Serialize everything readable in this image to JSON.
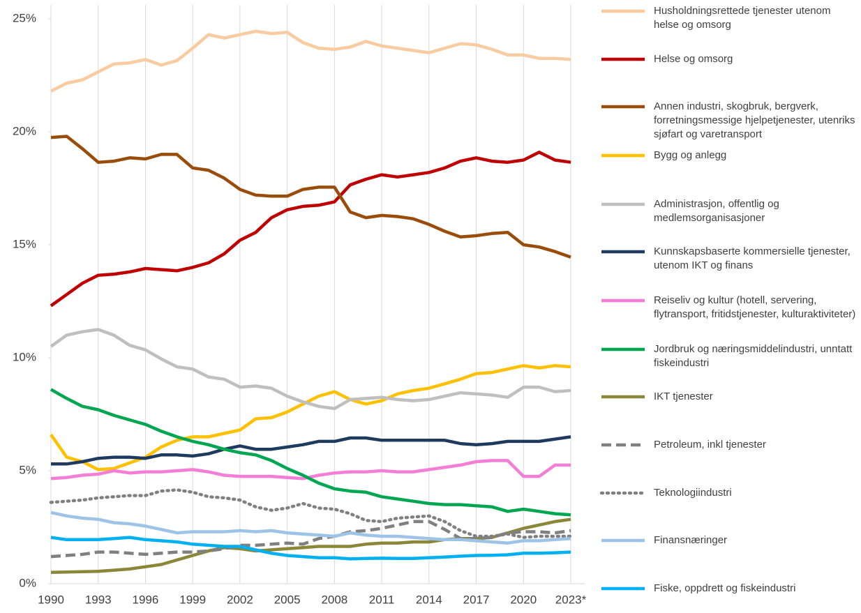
{
  "chart_data": {
    "type": "line",
    "categories": [
      "1990",
      null,
      null,
      "1993",
      null,
      null,
      "1996",
      null,
      null,
      "1999",
      null,
      null,
      "2002",
      null,
      null,
      "2005",
      null,
      null,
      "2008",
      null,
      null,
      "2011",
      null,
      null,
      "2014",
      null,
      null,
      "2017",
      null,
      null,
      "2020",
      null,
      null,
      "2023*"
    ],
    "ylim": [
      0,
      25
    ],
    "yticks": [
      {
        "value": 0,
        "label": "0%"
      },
      {
        "value": 5,
        "label": "5%"
      },
      {
        "value": 10,
        "label": "10%"
      },
      {
        "value": 15,
        "label": "15%"
      },
      {
        "value": 20,
        "label": "20%"
      },
      {
        "value": 25,
        "label": "25%"
      }
    ],
    "grid": true,
    "legend": "right",
    "series": [
      {
        "name": "Husholdningsrettede tjenester utenom helse og omsorg",
        "color": "#f8cba0",
        "dash": "solid",
        "values": [
          21.8,
          22.15,
          22.3,
          22.65,
          23.0,
          23.05,
          23.2,
          22.95,
          23.15,
          23.7,
          24.3,
          24.15,
          24.3,
          24.45,
          24.35,
          24.4,
          23.95,
          23.7,
          23.65,
          23.75,
          24.0,
          23.8,
          23.7,
          23.6,
          23.5,
          23.7,
          23.9,
          23.85,
          23.65,
          23.4,
          23.4,
          23.25,
          23.25,
          23.2
        ]
      },
      {
        "name": "Helse og omsorg",
        "color": "#c00000",
        "dash": "solid",
        "values": [
          12.3,
          12.8,
          13.3,
          13.65,
          13.7,
          13.8,
          13.95,
          13.9,
          13.85,
          14.0,
          14.2,
          14.6,
          15.2,
          15.55,
          16.2,
          16.55,
          16.7,
          16.75,
          16.9,
          17.65,
          17.9,
          18.1,
          18.0,
          18.1,
          18.2,
          18.4,
          18.7,
          18.85,
          18.7,
          18.65,
          18.75,
          19.1,
          18.75,
          18.65
        ]
      },
      {
        "name": "Annen industri, skogbruk, bergverk, forretningsmessige hjelpetjenester, utenriks sjøfart og varetransport",
        "color": "#9a4d0a",
        "dash": "solid",
        "values": [
          19.75,
          19.8,
          19.25,
          18.65,
          18.7,
          18.85,
          18.8,
          19.0,
          19.0,
          18.4,
          18.3,
          17.95,
          17.45,
          17.2,
          17.15,
          17.15,
          17.45,
          17.55,
          17.55,
          16.45,
          16.2,
          16.3,
          16.25,
          16.15,
          15.9,
          15.6,
          15.35,
          15.4,
          15.5,
          15.55,
          15.0,
          14.9,
          14.7,
          14.45
        ]
      },
      {
        "name": "Bygg og anlegg",
        "color": "#ffc000",
        "dash": "solid",
        "values": [
          6.6,
          5.6,
          5.4,
          5.05,
          5.1,
          5.35,
          5.6,
          6.05,
          6.35,
          6.5,
          6.5,
          6.65,
          6.8,
          7.3,
          7.35,
          7.6,
          7.95,
          8.3,
          8.5,
          8.15,
          7.95,
          8.1,
          8.4,
          8.55,
          8.65,
          8.85,
          9.05,
          9.3,
          9.35,
          9.5,
          9.65,
          9.55,
          9.65,
          9.6
        ]
      },
      {
        "name": "Administrasjon, offentlig og medlemsorganisasjoner",
        "color": "#bfbfbf",
        "dash": "solid",
        "values": [
          10.5,
          11.0,
          11.15,
          11.25,
          11.0,
          10.55,
          10.35,
          9.95,
          9.6,
          9.5,
          9.15,
          9.05,
          8.7,
          8.75,
          8.65,
          8.3,
          8.05,
          7.85,
          7.75,
          8.15,
          8.2,
          8.25,
          8.15,
          8.1,
          8.15,
          8.3,
          8.45,
          8.4,
          8.35,
          8.25,
          8.7,
          8.7,
          8.5,
          8.55
        ]
      },
      {
        "name": "Kunnskapsbaserte kommersielle tjenester, utenom IKT og finans",
        "color": "#1f3a5f",
        "dash": "solid",
        "values": [
          5.3,
          5.3,
          5.4,
          5.55,
          5.6,
          5.6,
          5.55,
          5.7,
          5.7,
          5.65,
          5.75,
          5.95,
          6.1,
          5.95,
          5.95,
          6.05,
          6.15,
          6.3,
          6.3,
          6.45,
          6.45,
          6.35,
          6.35,
          6.35,
          6.35,
          6.35,
          6.2,
          6.15,
          6.2,
          6.3,
          6.3,
          6.3,
          6.4,
          6.5
        ]
      },
      {
        "name": "Reiseliv og kultur (hotell, servering, flytransport, fritidstjenester, kulturaktiviteter)",
        "color": "#f47ed6",
        "dash": "solid",
        "values": [
          4.65,
          4.7,
          4.8,
          4.85,
          5.0,
          4.9,
          4.95,
          4.95,
          5.0,
          5.05,
          4.95,
          4.8,
          4.75,
          4.75,
          4.75,
          4.7,
          4.65,
          4.8,
          4.9,
          4.95,
          4.95,
          5.0,
          4.95,
          4.95,
          5.05,
          5.15,
          5.25,
          5.4,
          5.45,
          5.45,
          4.75,
          4.75,
          5.25,
          5.25
        ]
      },
      {
        "name": "Jordbruk og næringsmiddelindustri, unntatt fiskeindustri",
        "color": "#00a650",
        "dash": "solid",
        "values": [
          8.6,
          8.2,
          7.85,
          7.7,
          7.45,
          7.25,
          7.05,
          6.75,
          6.5,
          6.3,
          6.15,
          5.95,
          5.8,
          5.7,
          5.45,
          5.1,
          4.8,
          4.45,
          4.2,
          4.1,
          4.05,
          3.85,
          3.75,
          3.65,
          3.55,
          3.5,
          3.5,
          3.45,
          3.4,
          3.2,
          3.3,
          3.2,
          3.1,
          3.05
        ]
      },
      {
        "name": "IKT tjenester",
        "color": "#8a8739",
        "dash": "solid",
        "values": [
          0.5,
          0.52,
          0.53,
          0.55,
          0.6,
          0.65,
          0.75,
          0.85,
          1.05,
          1.25,
          1.45,
          1.6,
          1.55,
          1.45,
          1.5,
          1.55,
          1.6,
          1.65,
          1.65,
          1.65,
          1.75,
          1.8,
          1.8,
          1.85,
          1.85,
          1.95,
          2.0,
          2.0,
          2.05,
          2.25,
          2.45,
          2.6,
          2.75,
          2.85
        ]
      },
      {
        "name": "Petroleum, inkl tjenester",
        "color": "#808080",
        "dash": "dashed",
        "values": [
          1.2,
          1.25,
          1.3,
          1.4,
          1.4,
          1.35,
          1.3,
          1.35,
          1.4,
          1.4,
          1.45,
          1.55,
          1.7,
          1.7,
          1.75,
          1.8,
          1.75,
          2.0,
          2.1,
          2.3,
          2.35,
          2.45,
          2.6,
          2.75,
          2.75,
          2.4,
          2.0,
          2.0,
          2.05,
          2.25,
          2.3,
          2.3,
          2.25,
          2.35
        ]
      },
      {
        "name": "Teknologiindustri",
        "color": "#808080",
        "dash": "dotted",
        "values": [
          3.6,
          3.65,
          3.7,
          3.8,
          3.85,
          3.9,
          3.9,
          4.1,
          4.15,
          4.05,
          3.85,
          3.8,
          3.7,
          3.4,
          3.25,
          3.35,
          3.55,
          3.35,
          3.3,
          3.1,
          2.8,
          2.75,
          2.9,
          2.95,
          3.0,
          2.75,
          2.35,
          2.1,
          2.1,
          2.2,
          2.05,
          2.1,
          2.1,
          2.1
        ]
      },
      {
        "name": "Finansnæringer",
        "color": "#9dc3e6",
        "dash": "solid",
        "values": [
          3.15,
          3.0,
          2.9,
          2.85,
          2.7,
          2.65,
          2.55,
          2.4,
          2.25,
          2.3,
          2.3,
          2.3,
          2.35,
          2.3,
          2.35,
          2.25,
          2.2,
          2.15,
          2.1,
          2.25,
          2.15,
          2.1,
          2.1,
          2.05,
          2.0,
          1.95,
          1.95,
          1.9,
          1.85,
          1.8,
          1.9,
          1.9,
          1.95,
          2.0
        ]
      },
      {
        "name": "Fiske, oppdrett og fiskeindustri",
        "color": "#00b0f0",
        "dash": "solid",
        "values": [
          2.05,
          1.95,
          1.95,
          1.95,
          2.0,
          2.05,
          1.95,
          1.9,
          1.85,
          1.75,
          1.7,
          1.65,
          1.65,
          1.5,
          1.35,
          1.25,
          1.2,
          1.15,
          1.15,
          1.1,
          1.12,
          1.13,
          1.12,
          1.12,
          1.15,
          1.18,
          1.22,
          1.25,
          1.26,
          1.28,
          1.35,
          1.35,
          1.37,
          1.4
        ]
      }
    ]
  }
}
